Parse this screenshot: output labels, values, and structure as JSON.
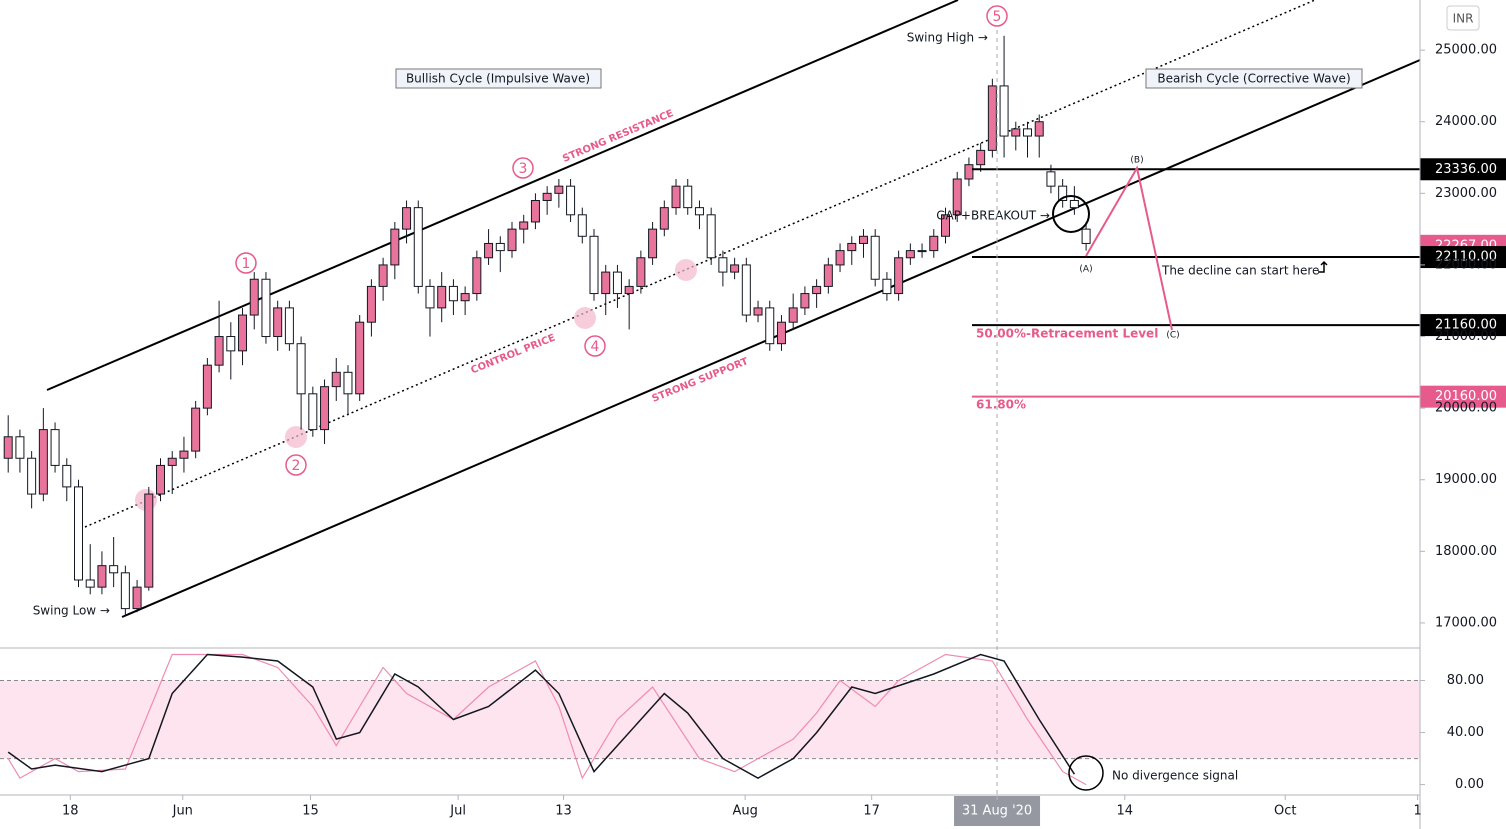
{
  "chart_data": {
    "type": "candlestick",
    "currency": "INR",
    "xlim": [
      -0.7,
      120.5
    ],
    "xticks": [
      {
        "value": 5.3,
        "label": "18"
      },
      {
        "value": 14.9,
        "label": "Jun"
      },
      {
        "value": 25.8,
        "label": "15"
      },
      {
        "value": 38.4,
        "label": "Jul"
      },
      {
        "value": 47.4,
        "label": "13"
      },
      {
        "value": 62.9,
        "label": "Aug"
      },
      {
        "value": 73.7,
        "label": "17"
      },
      {
        "value": 84.4,
        "label": "31 Aug '20"
      },
      {
        "value": 95.3,
        "label": "14"
      },
      {
        "value": 109,
        "label": "Oct"
      },
      {
        "value": 120.3,
        "label": "1"
      }
    ],
    "ylim": [
      16650,
      25700
    ],
    "yticks": [
      {
        "value": 17000,
        "label": "17000.00"
      },
      {
        "value": 18000,
        "label": "18000.00"
      },
      {
        "value": 19000,
        "label": "19000.00"
      },
      {
        "value": 20000,
        "label": "20000.00"
      },
      {
        "value": 21000,
        "label": "21000.00"
      },
      {
        "value": 22000,
        "label": "22000.00"
      },
      {
        "value": 23000,
        "label": "23000.00"
      },
      {
        "value": 24000,
        "label": "24000.00"
      },
      {
        "value": 25000,
        "label": "25000.00"
      }
    ],
    "up_color": "#e8749b",
    "down_color": "#ffffff",
    "candles": [
      [
        19300,
        19900,
        19100,
        19600
      ],
      [
        19600,
        19700,
        19100,
        19300
      ],
      [
        19300,
        19400,
        18600,
        18800
      ],
      [
        18800,
        20000,
        18700,
        19700
      ],
      [
        19700,
        19800,
        19100,
        19200
      ],
      [
        19200,
        19300,
        18700,
        18900
      ],
      [
        18900,
        19000,
        17500,
        17600
      ],
      [
        17600,
        18100,
        17400,
        17500
      ],
      [
        17500,
        18000,
        17400,
        17800
      ],
      [
        17800,
        18200,
        17500,
        17700
      ],
      [
        17700,
        17800,
        17100,
        17200
      ],
      [
        17200,
        17600,
        17150,
        17500
      ],
      [
        17500,
        18900,
        17450,
        18800
      ],
      [
        18800,
        19300,
        18700,
        19200
      ],
      [
        19200,
        19400,
        18800,
        19300
      ],
      [
        19300,
        19600,
        19100,
        19400
      ],
      [
        19400,
        20100,
        19300,
        20000
      ],
      [
        20000,
        20700,
        19900,
        20600
      ],
      [
        20600,
        21500,
        20500,
        21000
      ],
      [
        21000,
        21200,
        20400,
        20800
      ],
      [
        20800,
        21400,
        20600,
        21300
      ],
      [
        21300,
        21900,
        21100,
        21800
      ],
      [
        21800,
        21900,
        20900,
        21000
      ],
      [
        21000,
        21500,
        20800,
        21400
      ],
      [
        21400,
        21500,
        20800,
        20900
      ],
      [
        20900,
        21000,
        19700,
        20200
      ],
      [
        20200,
        20300,
        19600,
        19700
      ],
      [
        19700,
        20400,
        19500,
        20300
      ],
      [
        20300,
        20700,
        20100,
        20500
      ],
      [
        20500,
        20600,
        19900,
        20200
      ],
      [
        20200,
        21300,
        20100,
        21200
      ],
      [
        21200,
        21800,
        21000,
        21700
      ],
      [
        21700,
        22100,
        21500,
        22000
      ],
      [
        22000,
        22600,
        21800,
        22500
      ],
      [
        22500,
        22900,
        22300,
        22800
      ],
      [
        22800,
        22900,
        21600,
        21700
      ],
      [
        21700,
        21800,
        21000,
        21400
      ],
      [
        21400,
        21900,
        21200,
        21700
      ],
      [
        21700,
        21800,
        21300,
        21500
      ],
      [
        21500,
        21700,
        21300,
        21600
      ],
      [
        21600,
        22200,
        21500,
        22100
      ],
      [
        22100,
        22500,
        22000,
        22300
      ],
      [
        22300,
        22400,
        21900,
        22200
      ],
      [
        22200,
        22600,
        22100,
        22500
      ],
      [
        22500,
        22700,
        22300,
        22600
      ],
      [
        22600,
        23000,
        22500,
        22900
      ],
      [
        22900,
        23100,
        22700,
        23000
      ],
      [
        23000,
        23200,
        22800,
        23100
      ],
      [
        23100,
        23200,
        22600,
        22700
      ],
      [
        22700,
        22800,
        22300,
        22400
      ],
      [
        22400,
        22500,
        21500,
        21600
      ],
      [
        21600,
        22000,
        21300,
        21900
      ],
      [
        21900,
        22000,
        21400,
        21600
      ],
      [
        21600,
        21800,
        21100,
        21700
      ],
      [
        21700,
        22200,
        21600,
        22100
      ],
      [
        22100,
        22600,
        22000,
        22500
      ],
      [
        22500,
        22900,
        22400,
        22800
      ],
      [
        22800,
        23200,
        22700,
        23100
      ],
      [
        23100,
        23200,
        22700,
        22800
      ],
      [
        22800,
        22900,
        22500,
        22700
      ],
      [
        22700,
        22800,
        22000,
        22100
      ],
      [
        22100,
        22200,
        21700,
        21900
      ],
      [
        21900,
        22100,
        21800,
        22000
      ],
      [
        22000,
        22100,
        21200,
        21300
      ],
      [
        21300,
        21500,
        21200,
        21400
      ],
      [
        21400,
        21500,
        20800,
        20900
      ],
      [
        20900,
        21300,
        20800,
        21200
      ],
      [
        21200,
        21600,
        21100,
        21400
      ],
      [
        21400,
        21700,
        21300,
        21600
      ],
      [
        21600,
        21800,
        21400,
        21700
      ],
      [
        21700,
        22100,
        21600,
        22000
      ],
      [
        22000,
        22300,
        21900,
        22200
      ],
      [
        22200,
        22400,
        22000,
        22300
      ],
      [
        22300,
        22500,
        22100,
        22400
      ],
      [
        22400,
        22500,
        21700,
        21800
      ],
      [
        21800,
        21900,
        21500,
        21600
      ],
      [
        21600,
        22200,
        21500,
        22100
      ],
      [
        22100,
        22300,
        22000,
        22200
      ],
      [
        22200,
        22300,
        22100,
        22200
      ],
      [
        22200,
        22500,
        22100,
        22400
      ],
      [
        22400,
        22800,
        22300,
        22700
      ],
      [
        22700,
        23300,
        22600,
        23200
      ],
      [
        23200,
        23500,
        23100,
        23400
      ],
      [
        23400,
        23700,
        23300,
        23600
      ],
      [
        23600,
        24600,
        23500,
        24500
      ],
      [
        24500,
        25200,
        23500,
        23800
      ],
      [
        23800,
        24000,
        23600,
        23900
      ],
      [
        23900,
        24000,
        23500,
        23800
      ],
      [
        23800,
        24100,
        23500,
        24000
      ],
      [
        23300,
        23400,
        23000,
        23100
      ],
      [
        23100,
        23200,
        22800,
        22900
      ],
      [
        22900,
        23100,
        22700,
        22800
      ],
      [
        22500,
        22600,
        22200,
        22300
      ]
    ],
    "levels": [
      {
        "value": 23336,
        "label": "23336.00",
        "color": "#000000",
        "line": true
      },
      {
        "value": 22267,
        "label": "22267.00",
        "color": "#e75a8c",
        "line": false
      },
      {
        "value": 22110,
        "label": "22110.00",
        "color": "#000000",
        "line": true
      },
      {
        "value": 21160,
        "label": "21160.00",
        "color": "#000000",
        "line": true
      },
      {
        "value": 20160,
        "label": "20160.00",
        "color": "#e75a8c",
        "line": true
      }
    ],
    "annotations": {
      "bullish": "Bullish Cycle (Impulsive Wave)",
      "bearish": "Bearish Cycle (Corrective Wave)",
      "resistance": "STRONG RESISTANCE",
      "control": "CONTROL PRICE",
      "support": "STRONG SUPPORT",
      "swing_high": "Swing High →",
      "swing_low": "Swing Low →",
      "gap": "GAP+BREAKOUT →",
      "decline": "The decline can start here",
      "retrace50": "50.00%-Retracement Level",
      "retrace618": "61.80%",
      "a": "(A)",
      "b": "(B)",
      "c": "(C)",
      "w1": "1",
      "w2": "2",
      "w3": "3",
      "w4": "4",
      "w5": "5",
      "divergence": "No divergence signal"
    },
    "oscillator": {
      "ylim": [
        -8,
        105
      ],
      "yticks": [
        {
          "value": 0,
          "label": "0.00"
        },
        {
          "value": 40,
          "label": "40.00"
        },
        {
          "value": 80,
          "label": "80.00"
        }
      ],
      "bands": [
        20,
        80
      ],
      "series": [
        {
          "color": "#131722",
          "x": [
            0,
            2,
            4,
            8,
            12,
            14,
            17,
            20,
            23,
            26,
            28,
            30,
            33,
            35,
            38,
            41,
            45,
            47,
            50,
            52,
            56,
            58,
            61,
            64,
            67,
            69,
            72,
            74,
            79,
            83,
            85,
            88,
            91
          ],
          "values": [
            25,
            12,
            15,
            10,
            20,
            70,
            100,
            98,
            95,
            75,
            35,
            40,
            85,
            75,
            50,
            60,
            88,
            70,
            10,
            30,
            70,
            55,
            20,
            5,
            20,
            40,
            75,
            70,
            85,
            100,
            95,
            50,
            8
          ]
        },
        {
          "color": "#f08cb0",
          "x": [
            0,
            1,
            4,
            6,
            10,
            14,
            17,
            20,
            23,
            26,
            28,
            30,
            32,
            34,
            38,
            41,
            45,
            47,
            49,
            52,
            55,
            59,
            62,
            67,
            69,
            71,
            74,
            76,
            80,
            84,
            87,
            90,
            92
          ],
          "values": [
            20,
            5,
            20,
            10,
            12,
            100,
            100,
            100,
            90,
            60,
            30,
            60,
            90,
            70,
            50,
            75,
            95,
            60,
            5,
            50,
            75,
            20,
            10,
            35,
            55,
            80,
            60,
            80,
            100,
            95,
            50,
            10,
            0
          ]
        }
      ]
    }
  }
}
